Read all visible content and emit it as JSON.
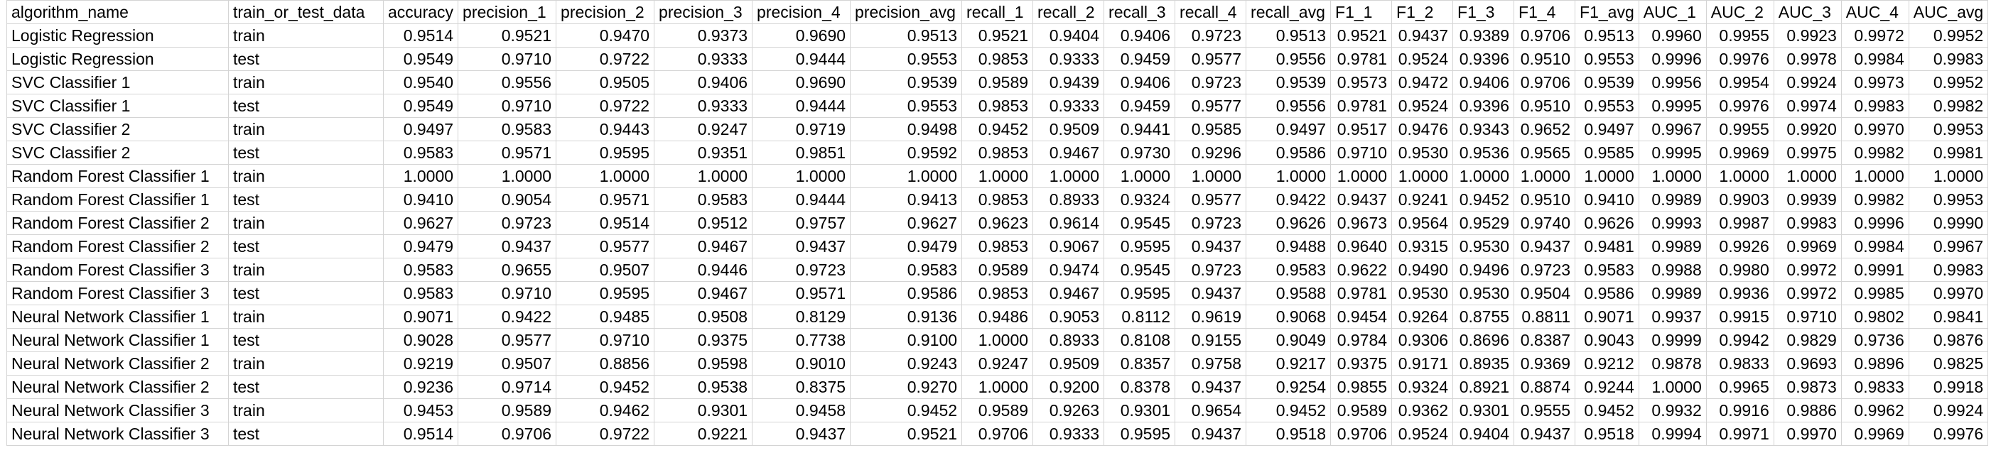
{
  "sheet": {
    "columns": [
      "algorithm_name",
      "train_or_test_data",
      "accuracy",
      "precision_1",
      "precision_2",
      "precision_3",
      "precision_4",
      "precision_avg",
      "recall_1",
      "recall_2",
      "recall_3",
      "recall_4",
      "recall_avg",
      "F1_1",
      "F1_2",
      "F1_3",
      "F1_4",
      "F1_avg",
      "AUC_1",
      "AUC_2",
      "AUC_3",
      "AUC_4",
      "AUC_avg"
    ],
    "rows": [
      [
        "Logistic Regression",
        "train",
        "0.9514",
        "0.9521",
        "0.9470",
        "0.9373",
        "0.9690",
        "0.9513",
        "0.9521",
        "0.9404",
        "0.9406",
        "0.9723",
        "0.9513",
        "0.9521",
        "0.9437",
        "0.9389",
        "0.9706",
        "0.9513",
        "0.9960",
        "0.9955",
        "0.9923",
        "0.9972",
        "0.9952"
      ],
      [
        "Logistic Regression",
        "test",
        "0.9549",
        "0.9710",
        "0.9722",
        "0.9333",
        "0.9444",
        "0.9553",
        "0.9853",
        "0.9333",
        "0.9459",
        "0.9577",
        "0.9556",
        "0.9781",
        "0.9524",
        "0.9396",
        "0.9510",
        "0.9553",
        "0.9996",
        "0.9976",
        "0.9978",
        "0.9984",
        "0.9983"
      ],
      [
        "SVC Classifier 1",
        "train",
        "0.9540",
        "0.9556",
        "0.9505",
        "0.9406",
        "0.9690",
        "0.9539",
        "0.9589",
        "0.9439",
        "0.9406",
        "0.9723",
        "0.9539",
        "0.9573",
        "0.9472",
        "0.9406",
        "0.9706",
        "0.9539",
        "0.9956",
        "0.9954",
        "0.9924",
        "0.9973",
        "0.9952"
      ],
      [
        "SVC Classifier 1",
        "test",
        "0.9549",
        "0.9710",
        "0.9722",
        "0.9333",
        "0.9444",
        "0.9553",
        "0.9853",
        "0.9333",
        "0.9459",
        "0.9577",
        "0.9556",
        "0.9781",
        "0.9524",
        "0.9396",
        "0.9510",
        "0.9553",
        "0.9995",
        "0.9976",
        "0.9974",
        "0.9983",
        "0.9982"
      ],
      [
        "SVC Classifier 2",
        "train",
        "0.9497",
        "0.9583",
        "0.9443",
        "0.9247",
        "0.9719",
        "0.9498",
        "0.9452",
        "0.9509",
        "0.9441",
        "0.9585",
        "0.9497",
        "0.9517",
        "0.9476",
        "0.9343",
        "0.9652",
        "0.9497",
        "0.9967",
        "0.9955",
        "0.9920",
        "0.9970",
        "0.9953"
      ],
      [
        "SVC Classifier 2",
        "test",
        "0.9583",
        "0.9571",
        "0.9595",
        "0.9351",
        "0.9851",
        "0.9592",
        "0.9853",
        "0.9467",
        "0.9730",
        "0.9296",
        "0.9586",
        "0.9710",
        "0.9530",
        "0.9536",
        "0.9565",
        "0.9585",
        "0.9995",
        "0.9969",
        "0.9975",
        "0.9982",
        "0.9981"
      ],
      [
        "Random Forest Classifier 1",
        "train",
        "1.0000",
        "1.0000",
        "1.0000",
        "1.0000",
        "1.0000",
        "1.0000",
        "1.0000",
        "1.0000",
        "1.0000",
        "1.0000",
        "1.0000",
        "1.0000",
        "1.0000",
        "1.0000",
        "1.0000",
        "1.0000",
        "1.0000",
        "1.0000",
        "1.0000",
        "1.0000",
        "1.0000"
      ],
      [
        "Random Forest Classifier 1",
        "test",
        "0.9410",
        "0.9054",
        "0.9571",
        "0.9583",
        "0.9444",
        "0.9413",
        "0.9853",
        "0.8933",
        "0.9324",
        "0.9577",
        "0.9422",
        "0.9437",
        "0.9241",
        "0.9452",
        "0.9510",
        "0.9410",
        "0.9989",
        "0.9903",
        "0.9939",
        "0.9982",
        "0.9953"
      ],
      [
        "Random Forest Classifier 2",
        "train",
        "0.9627",
        "0.9723",
        "0.9514",
        "0.9512",
        "0.9757",
        "0.9627",
        "0.9623",
        "0.9614",
        "0.9545",
        "0.9723",
        "0.9626",
        "0.9673",
        "0.9564",
        "0.9529",
        "0.9740",
        "0.9626",
        "0.9993",
        "0.9987",
        "0.9983",
        "0.9996",
        "0.9990"
      ],
      [
        "Random Forest Classifier 2",
        "test",
        "0.9479",
        "0.9437",
        "0.9577",
        "0.9467",
        "0.9437",
        "0.9479",
        "0.9853",
        "0.9067",
        "0.9595",
        "0.9437",
        "0.9488",
        "0.9640",
        "0.9315",
        "0.9530",
        "0.9437",
        "0.9481",
        "0.9989",
        "0.9926",
        "0.9969",
        "0.9984",
        "0.9967"
      ],
      [
        "Random Forest Classifier 3",
        "train",
        "0.9583",
        "0.9655",
        "0.9507",
        "0.9446",
        "0.9723",
        "0.9583",
        "0.9589",
        "0.9474",
        "0.9545",
        "0.9723",
        "0.9583",
        "0.9622",
        "0.9490",
        "0.9496",
        "0.9723",
        "0.9583",
        "0.9988",
        "0.9980",
        "0.9972",
        "0.9991",
        "0.9983"
      ],
      [
        "Random Forest Classifier 3",
        "test",
        "0.9583",
        "0.9710",
        "0.9595",
        "0.9467",
        "0.9571",
        "0.9586",
        "0.9853",
        "0.9467",
        "0.9595",
        "0.9437",
        "0.9588",
        "0.9781",
        "0.9530",
        "0.9530",
        "0.9504",
        "0.9586",
        "0.9989",
        "0.9936",
        "0.9972",
        "0.9985",
        "0.9970"
      ],
      [
        "Neural Network Classifier 1",
        "train",
        "0.9071",
        "0.9422",
        "0.9485",
        "0.9508",
        "0.8129",
        "0.9136",
        "0.9486",
        "0.9053",
        "0.8112",
        "0.9619",
        "0.9068",
        "0.9454",
        "0.9264",
        "0.8755",
        "0.8811",
        "0.9071",
        "0.9937",
        "0.9915",
        "0.9710",
        "0.9802",
        "0.9841"
      ],
      [
        "Neural Network Classifier 1",
        "test",
        "0.9028",
        "0.9577",
        "0.9710",
        "0.9375",
        "0.7738",
        "0.9100",
        "1.0000",
        "0.8933",
        "0.8108",
        "0.9155",
        "0.9049",
        "0.9784",
        "0.9306",
        "0.8696",
        "0.8387",
        "0.9043",
        "0.9999",
        "0.9942",
        "0.9829",
        "0.9736",
        "0.9876"
      ],
      [
        "Neural Network Classifier 2",
        "train",
        "0.9219",
        "0.9507",
        "0.8856",
        "0.9598",
        "0.9010",
        "0.9243",
        "0.9247",
        "0.9509",
        "0.8357",
        "0.9758",
        "0.9217",
        "0.9375",
        "0.9171",
        "0.8935",
        "0.9369",
        "0.9212",
        "0.9878",
        "0.9833",
        "0.9693",
        "0.9896",
        "0.9825"
      ],
      [
        "Neural Network Classifier 2",
        "test",
        "0.9236",
        "0.9714",
        "0.9452",
        "0.9538",
        "0.8375",
        "0.9270",
        "1.0000",
        "0.9200",
        "0.8378",
        "0.9437",
        "0.9254",
        "0.9855",
        "0.9324",
        "0.8921",
        "0.8874",
        "0.9244",
        "1.0000",
        "0.9965",
        "0.9873",
        "0.9833",
        "0.9918"
      ],
      [
        "Neural Network Classifier 3",
        "train",
        "0.9453",
        "0.9589",
        "0.9462",
        "0.9301",
        "0.9458",
        "0.9452",
        "0.9589",
        "0.9263",
        "0.9301",
        "0.9654",
        "0.9452",
        "0.9589",
        "0.9362",
        "0.9301",
        "0.9555",
        "0.9452",
        "0.9932",
        "0.9916",
        "0.9886",
        "0.9962",
        "0.9924"
      ],
      [
        "Neural Network Classifier 3",
        "test",
        "0.9514",
        "0.9706",
        "0.9722",
        "0.9221",
        "0.9437",
        "0.9521",
        "0.9706",
        "0.9333",
        "0.9595",
        "0.9437",
        "0.9518",
        "0.9706",
        "0.9524",
        "0.9404",
        "0.9437",
        "0.9518",
        "0.9994",
        "0.9971",
        "0.9970",
        "0.9969",
        "0.9976"
      ]
    ]
  }
}
